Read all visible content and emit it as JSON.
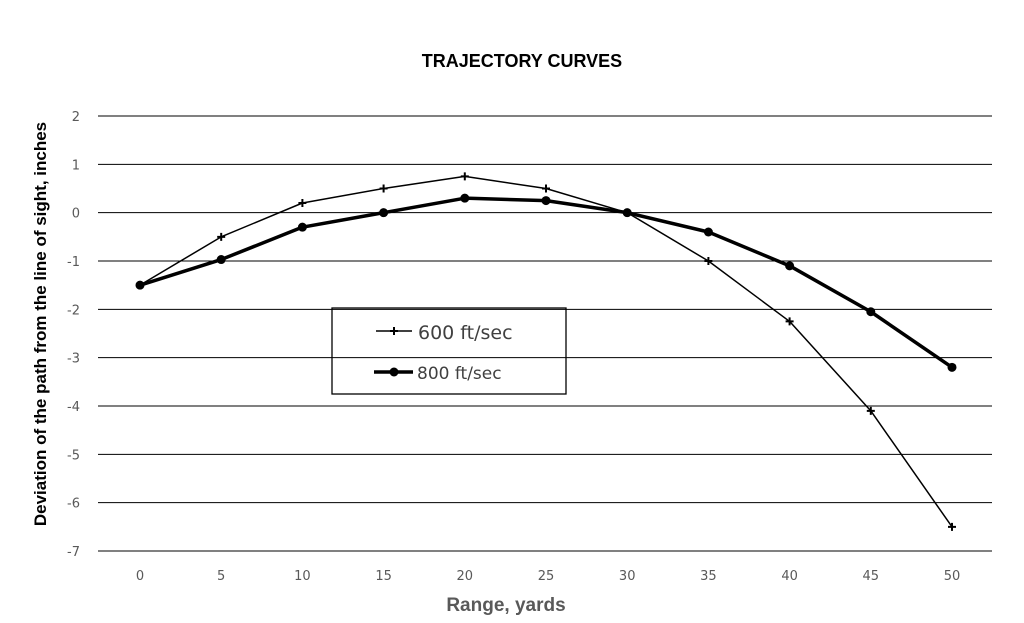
{
  "chart_data": {
    "type": "line",
    "title": "TRAJECTORY CURVES",
    "xlabel": "Range, yards",
    "ylabel": "Deviation of the path from the line of sight, inches",
    "x": [
      0,
      5,
      10,
      15,
      20,
      25,
      30,
      35,
      40,
      45,
      50
    ],
    "ylim": [
      -7,
      2
    ],
    "yticks": [
      2,
      1,
      0,
      -1,
      -2,
      -3,
      -4,
      -5,
      -6,
      -7
    ],
    "grid": true,
    "legend": "center-left",
    "series": [
      {
        "name": "600 ft/sec",
        "values": [
          -1.5,
          -0.5,
          0.2,
          0.5,
          0.75,
          0.5,
          0,
          -1.0,
          -2.25,
          -4.1,
          -6.5
        ],
        "color": "#000000",
        "marker": "plus"
      },
      {
        "name": "800 ft/sec",
        "values": [
          -1.5,
          -0.97,
          -0.3,
          0,
          0.3,
          0.25,
          0,
          -0.4,
          -1.1,
          -2.05,
          -3.2
        ],
        "color": "#000000",
        "marker": "circle"
      }
    ]
  }
}
